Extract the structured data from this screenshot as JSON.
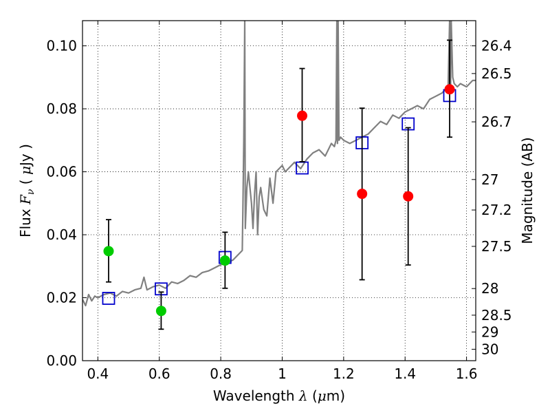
{
  "chart_data": {
    "type": "scatter",
    "xlabel": {
      "prefix": "Wavelength  ",
      "symbol": "λ",
      "mid": " (",
      "unit_symbol": "μ",
      "suffix": "m)"
    },
    "ylabel": {
      "prefix": "Flux  ",
      "symbol": "F",
      "sub": "ν",
      "mid": "  (  ",
      "unit_symbol": "μ",
      "suffix": "Jy  )"
    },
    "y2label": "Magnitude (AB)",
    "xlim": [
      0.35,
      1.63
    ],
    "ylim": [
      0.0,
      0.108
    ],
    "grid": true,
    "x_ticks": [
      0.4,
      0.6,
      0.8,
      1.0,
      1.2,
      1.4,
      1.6
    ],
    "x_tick_labels": [
      "0.4",
      "0.6",
      "0.8",
      "1",
      "1.2",
      "1.4",
      "1.6"
    ],
    "y_ticks": [
      0.0,
      0.02,
      0.04,
      0.06,
      0.08,
      0.1
    ],
    "y_tick_labels": [
      "0.00",
      "0.02",
      "0.04",
      "0.06",
      "0.08",
      "0.10"
    ],
    "y2_ticks": [
      "26.4",
      "26.5",
      "26.7",
      "27",
      "27.2",
      "27.5",
      "28",
      "28.5",
      "29",
      "30"
    ],
    "colors": {
      "model": "#808080",
      "green": "#00cc00",
      "red": "#ff0000",
      "squares": "#0000cc",
      "errorbar": "#000000"
    },
    "series": [
      {
        "marker": "green-circle",
        "points": [
          {
            "x": 0.435,
            "y": 0.0348,
            "err": [
              0.025,
              0.0448
            ]
          },
          {
            "x": 0.606,
            "y": 0.0158,
            "err": [
              0.01,
              0.0218
            ]
          },
          {
            "x": 0.814,
            "y": 0.0318,
            "err": [
              0.023,
              0.0408
            ]
          }
        ]
      },
      {
        "marker": "red-circle",
        "points": [
          {
            "x": 1.065,
            "y": 0.0778,
            "err": [
              0.0632,
              0.0928
            ]
          },
          {
            "x": 1.26,
            "y": 0.053,
            "err": [
              0.0257,
              0.0802
            ]
          },
          {
            "x": 1.41,
            "y": 0.0522,
            "err": [
              0.0304,
              0.074
            ]
          },
          {
            "x": 1.545,
            "y": 0.0862,
            "err": [
              0.071,
              0.1018
            ]
          }
        ]
      },
      {
        "marker": "blue-square",
        "points": [
          {
            "x": 0.435,
            "y": 0.0198
          },
          {
            "x": 0.606,
            "y": 0.0228
          },
          {
            "x": 0.814,
            "y": 0.0328
          },
          {
            "x": 1.065,
            "y": 0.0612
          },
          {
            "x": 1.26,
            "y": 0.0692
          },
          {
            "x": 1.41,
            "y": 0.0752
          },
          {
            "x": 1.545,
            "y": 0.0842
          }
        ]
      },
      {
        "marker": "grey-line",
        "x": [
          0.35,
          0.36,
          0.37,
          0.38,
          0.39,
          0.4,
          0.42,
          0.44,
          0.46,
          0.48,
          0.5,
          0.52,
          0.54,
          0.55,
          0.56,
          0.58,
          0.6,
          0.62,
          0.64,
          0.66,
          0.68,
          0.7,
          0.72,
          0.74,
          0.76,
          0.78,
          0.8,
          0.82,
          0.84,
          0.86,
          0.87,
          0.872,
          0.875,
          0.878,
          0.88,
          0.885,
          0.89,
          0.9,
          0.905,
          0.91,
          0.915,
          0.92,
          0.925,
          0.93,
          0.94,
          0.95,
          0.96,
          0.97,
          0.98,
          1.0,
          1.01,
          1.02,
          1.04,
          1.06,
          1.08,
          1.1,
          1.12,
          1.14,
          1.16,
          1.17,
          1.175,
          1.178,
          1.18,
          1.182,
          1.185,
          1.19,
          1.2,
          1.22,
          1.24,
          1.26,
          1.28,
          1.3,
          1.32,
          1.34,
          1.36,
          1.38,
          1.4,
          1.42,
          1.44,
          1.46,
          1.48,
          1.5,
          1.52,
          1.54,
          1.545,
          1.548,
          1.55,
          1.555,
          1.56,
          1.57,
          1.58,
          1.6,
          1.62,
          1.63
        ],
        "y": [
          0.0195,
          0.0175,
          0.021,
          0.019,
          0.0205,
          0.02,
          0.021,
          0.0215,
          0.0205,
          0.022,
          0.0215,
          0.0225,
          0.023,
          0.0265,
          0.0225,
          0.0235,
          0.024,
          0.023,
          0.025,
          0.0245,
          0.0255,
          0.027,
          0.0265,
          0.028,
          0.0285,
          0.0295,
          0.0305,
          0.031,
          0.032,
          0.034,
          0.035,
          0.048,
          0.07,
          0.108,
          0.042,
          0.055,
          0.06,
          0.05,
          0.042,
          0.053,
          0.06,
          0.04,
          0.052,
          0.055,
          0.048,
          0.046,
          0.058,
          0.05,
          0.06,
          0.062,
          0.06,
          0.061,
          0.063,
          0.061,
          0.064,
          0.066,
          0.067,
          0.065,
          0.069,
          0.068,
          0.07,
          0.108,
          0.069,
          0.108,
          0.07,
          0.071,
          0.07,
          0.069,
          0.07,
          0.071,
          0.072,
          0.074,
          0.076,
          0.075,
          0.078,
          0.077,
          0.079,
          0.08,
          0.081,
          0.08,
          0.083,
          0.084,
          0.085,
          0.087,
          0.108,
          0.086,
          0.108,
          0.09,
          0.088,
          0.087,
          0.088,
          0.087,
          0.089,
          0.089
        ]
      }
    ]
  }
}
